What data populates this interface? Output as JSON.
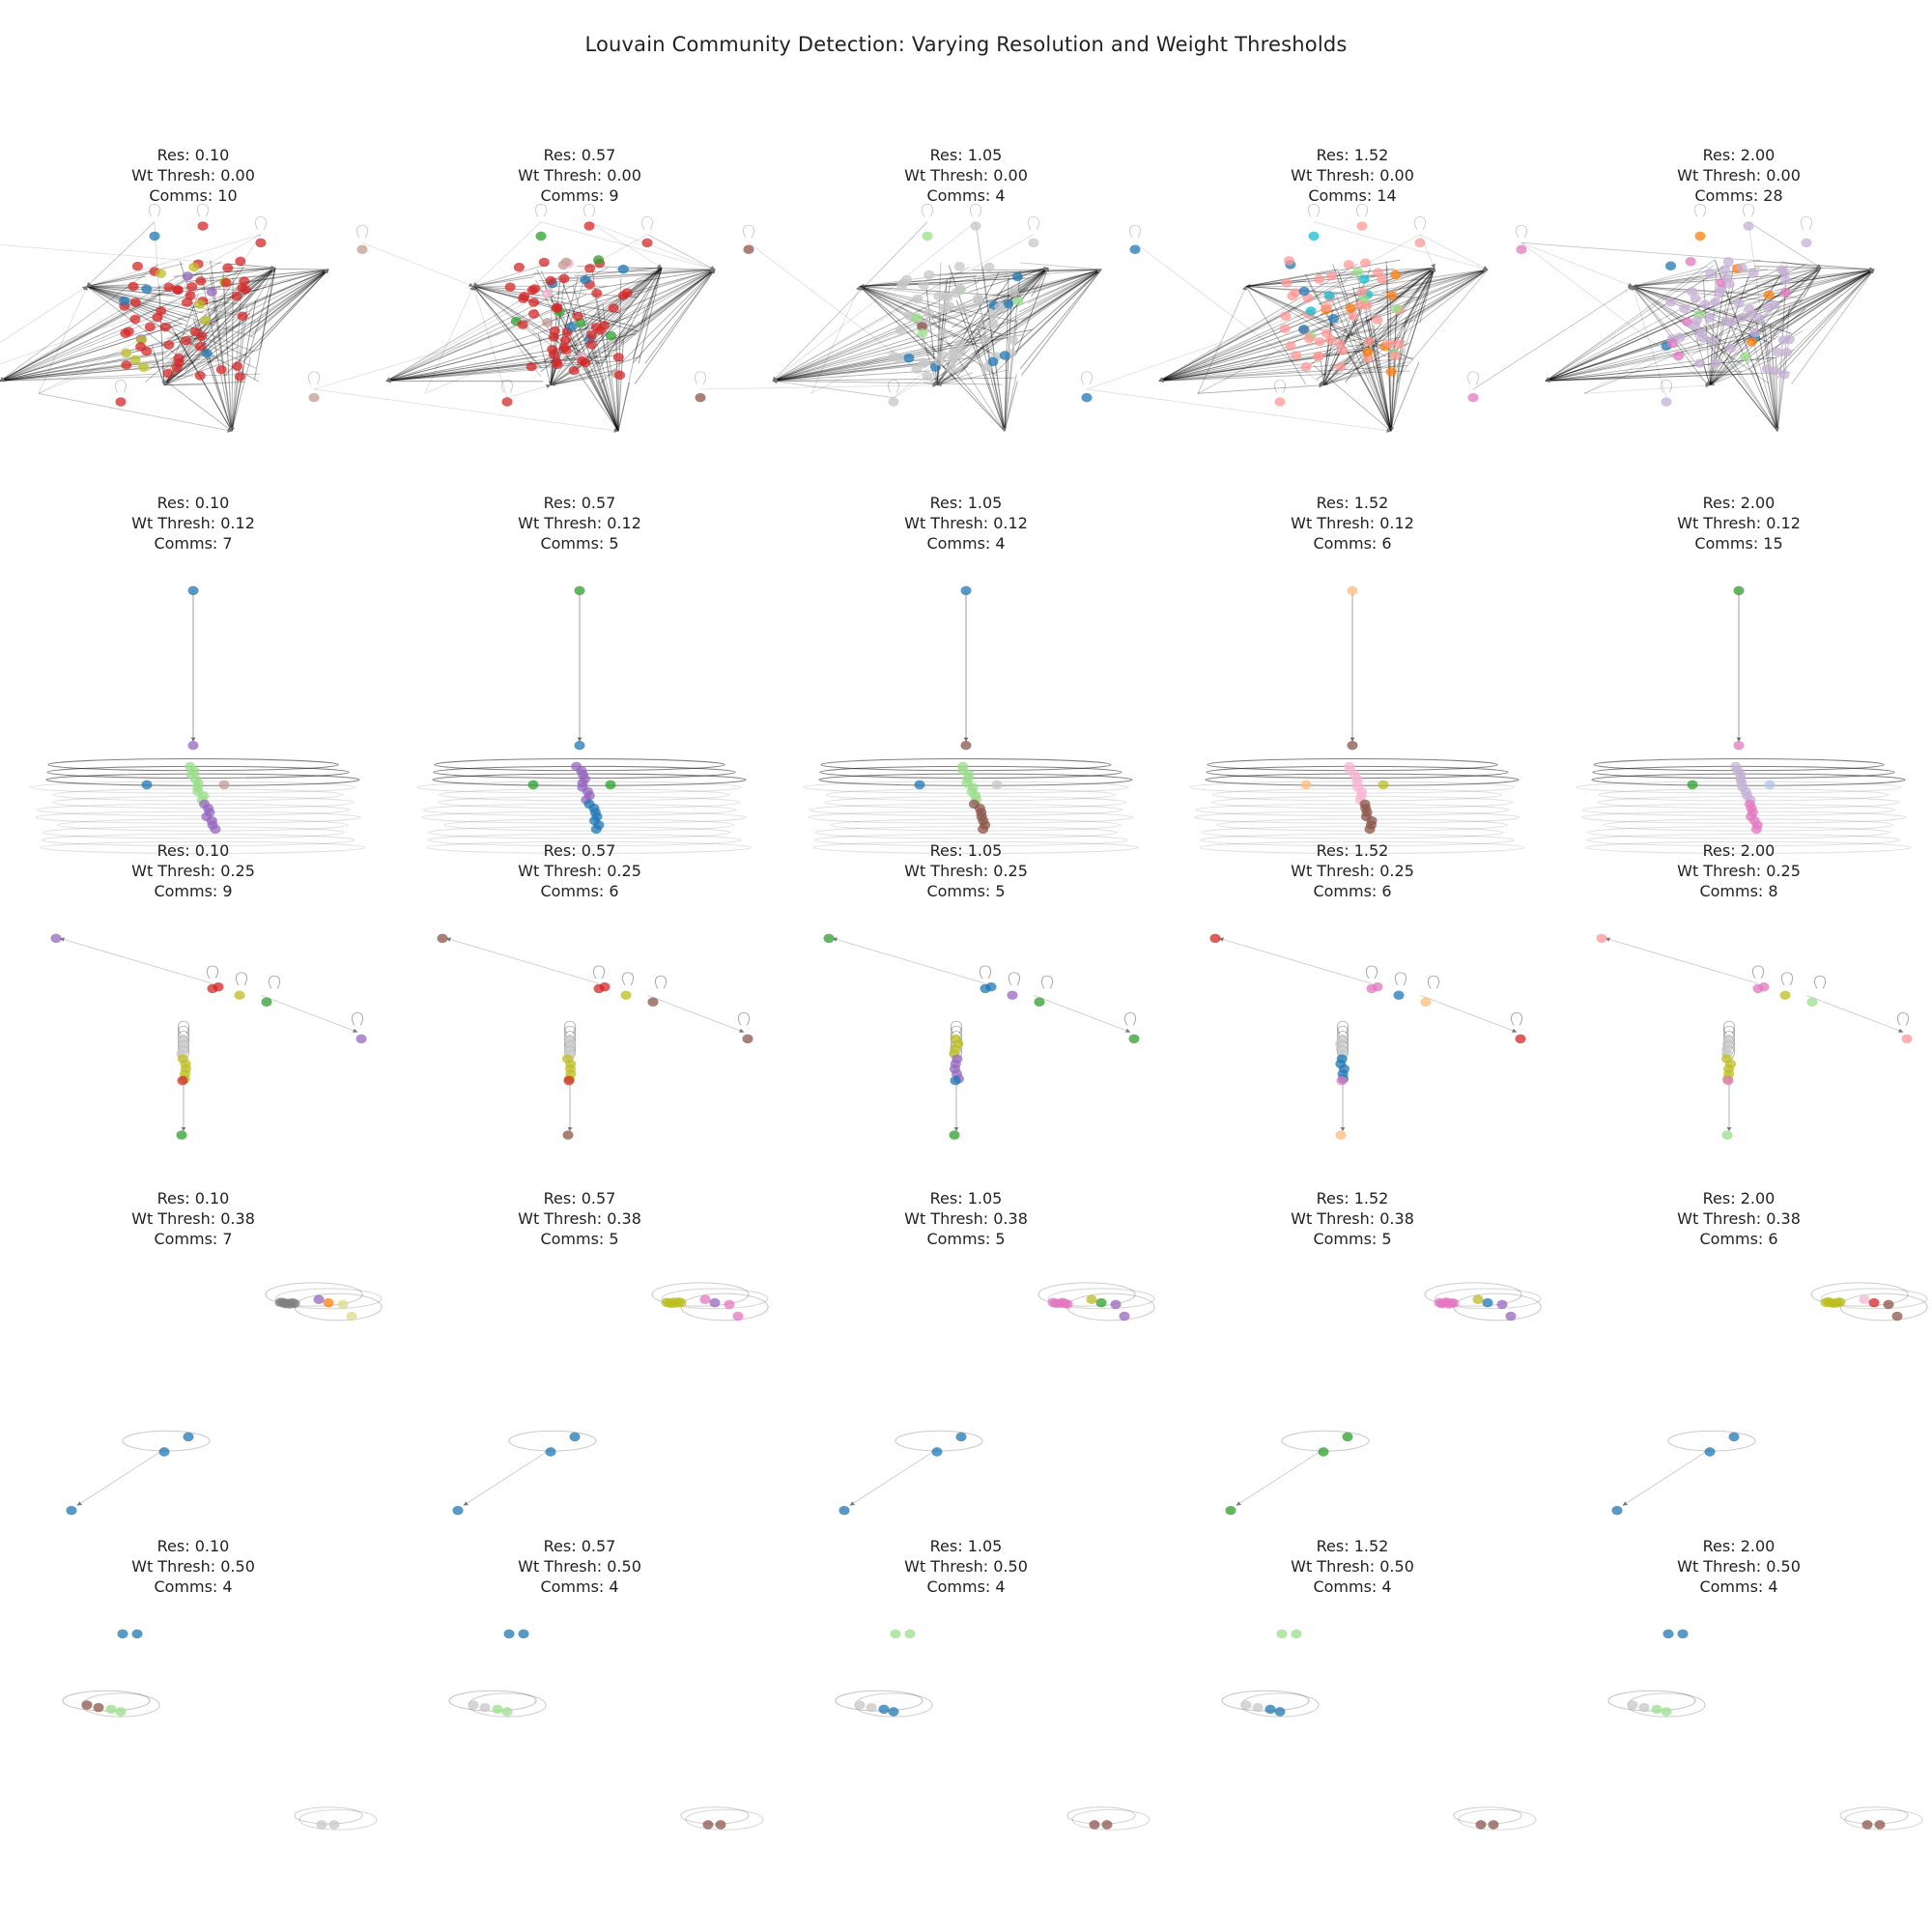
{
  "title": "Louvain Community Detection: Varying Resolution and Weight Thresholds",
  "labels": {
    "res": "Res: ",
    "wt": "Wt Thresh: ",
    "comms": "Comms: "
  },
  "resolutions": [
    "0.10",
    "0.57",
    "1.05",
    "1.52",
    "2.00"
  ],
  "weight_thresholds": [
    "0.00",
    "0.12",
    "0.25",
    "0.38",
    "0.50"
  ],
  "communities": [
    [
      10,
      9,
      4,
      14,
      28
    ],
    [
      7,
      5,
      4,
      6,
      15
    ],
    [
      9,
      6,
      5,
      6,
      8
    ],
    [
      7,
      5,
      5,
      5,
      6
    ],
    [
      4,
      4,
      4,
      4,
      4
    ]
  ],
  "colors": {
    "blue": "#1f77b4",
    "orange": "#ff7f0e",
    "green": "#2ca02c",
    "red": "#d62728",
    "purple": "#9467bd",
    "brown": "#8c564b",
    "pink": "#e377c2",
    "gray": "#7f7f7f",
    "olive": "#bcbd22",
    "cyan": "#17becf",
    "lightblue": "#aec7e8",
    "lightorange": "#ffbb78",
    "lightgreen": "#98df8a",
    "lightred": "#ff9896",
    "lavender": "#c5b0d5",
    "tan": "#c49c94",
    "lightpink": "#f7b6d2",
    "lightgray": "#c7c7c7",
    "lightolive": "#dbdb8d",
    "edge": "#000000"
  },
  "row_palettes": [
    [
      {
        "main": "red",
        "acc": [
          "olive",
          "purple",
          "blue",
          "lightgreen"
        ]
      },
      {
        "main": "red",
        "acc": [
          "tan",
          "blue",
          "green",
          "lightpink"
        ]
      },
      {
        "main": "lightgray",
        "acc": [
          "brown",
          "blue",
          "lightgreen",
          "blue"
        ]
      },
      {
        "main": "lightred",
        "acc": [
          "blue",
          "lightgreen",
          "cyan",
          "orange"
        ]
      },
      {
        "main": "lavender",
        "acc": [
          "pink",
          "blue",
          "orange",
          "lightgreen"
        ]
      }
    ],
    [
      {
        "main": "lightgreen",
        "acc": [
          "purple",
          "olive",
          "blue",
          "tan"
        ]
      },
      {
        "main": "purple",
        "acc": [
          "blue",
          "pink",
          "green",
          "green"
        ]
      },
      {
        "main": "lightgreen",
        "acc": [
          "brown",
          "brown",
          "blue",
          "lightgray"
        ]
      },
      {
        "main": "lightpink",
        "acc": [
          "brown",
          "blue",
          "lightorange",
          "olive"
        ]
      },
      {
        "main": "lavender",
        "acc": [
          "pink",
          "blue",
          "green",
          "lightblue"
        ]
      }
    ],
    [
      {
        "main": "lightgray",
        "acc": [
          "red",
          "olive",
          "green",
          "purple"
        ]
      },
      {
        "main": "lightgray",
        "acc": [
          "red",
          "olive",
          "brown",
          "brown"
        ]
      },
      {
        "main": "olive",
        "acc": [
          "blue",
          "purple",
          "green",
          "green"
        ]
      },
      {
        "main": "lightgray",
        "acc": [
          "pink",
          "blue",
          "lightorange",
          "red"
        ]
      },
      {
        "main": "lightgray",
        "acc": [
          "pink",
          "olive",
          "lightgreen",
          "lightred"
        ]
      }
    ],
    [
      {
        "main": "gray",
        "acc": [
          "purple",
          "orange",
          "lightolive",
          "blue"
        ]
      },
      {
        "main": "olive",
        "acc": [
          "pink",
          "purple",
          "pink",
          "blue"
        ]
      },
      {
        "main": "pink",
        "acc": [
          "olive",
          "green",
          "purple",
          "blue"
        ]
      },
      {
        "main": "pink",
        "acc": [
          "olive",
          "blue",
          "purple",
          "green"
        ]
      },
      {
        "main": "olive",
        "acc": [
          "lightpink",
          "red",
          "brown",
          "blue"
        ]
      }
    ],
    [
      {
        "main": "blue",
        "acc": [
          "brown",
          "lightgreen",
          "lightgray",
          "lightgray"
        ]
      },
      {
        "main": "blue",
        "acc": [
          "lightgray",
          "lightgreen",
          "brown",
          "brown"
        ]
      },
      {
        "main": "lightgreen",
        "acc": [
          "lightgray",
          "blue",
          "brown",
          "brown"
        ]
      },
      {
        "main": "lightgreen",
        "acc": [
          "lightgray",
          "blue",
          "brown",
          "brown"
        ]
      },
      {
        "main": "blue",
        "acc": [
          "lightgray",
          "lightgreen",
          "brown",
          "brown"
        ]
      }
    ]
  ]
}
